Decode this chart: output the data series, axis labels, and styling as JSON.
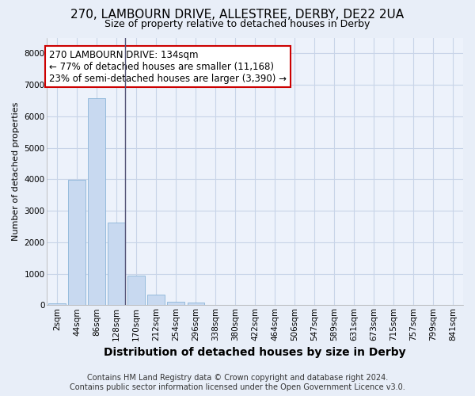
{
  "title_line1": "270, LAMBOURN DRIVE, ALLESTREE, DERBY, DE22 2UA",
  "title_line2": "Size of property relative to detached houses in Derby",
  "xlabel": "Distribution of detached houses by size in Derby",
  "ylabel": "Number of detached properties",
  "categories": [
    "2sqm",
    "44sqm",
    "86sqm",
    "128sqm",
    "170sqm",
    "212sqm",
    "254sqm",
    "296sqm",
    "338sqm",
    "380sqm",
    "422sqm",
    "464sqm",
    "506sqm",
    "547sqm",
    "589sqm",
    "631sqm",
    "673sqm",
    "715sqm",
    "757sqm",
    "799sqm",
    "841sqm"
  ],
  "values": [
    60,
    3980,
    6580,
    2620,
    950,
    330,
    110,
    70,
    0,
    0,
    0,
    0,
    0,
    0,
    0,
    0,
    0,
    0,
    0,
    0,
    0
  ],
  "bar_color": "#c8d9f0",
  "bar_edge_color": "#8ab4d8",
  "annotation_title": "270 LAMBOURN DRIVE: 134sqm",
  "annotation_line2": "← 77% of detached houses are smaller (11,168)",
  "annotation_line3": "23% of semi-detached houses are larger (3,390) →",
  "annotation_box_facecolor": "white",
  "annotation_box_edgecolor": "#cc0000",
  "vline_bar_index": 3,
  "ylim": [
    0,
    8500
  ],
  "yticks": [
    0,
    1000,
    2000,
    3000,
    4000,
    5000,
    6000,
    7000,
    8000
  ],
  "grid_color": "#c8d4e8",
  "bg_color": "#e8eef8",
  "plot_bg_color": "#edf2fb",
  "footer_line1": "Contains HM Land Registry data © Crown copyright and database right 2024.",
  "footer_line2": "Contains public sector information licensed under the Open Government Licence v3.0.",
  "title1_fontsize": 11,
  "title2_fontsize": 9,
  "xlabel_fontsize": 10,
  "ylabel_fontsize": 8,
  "tick_fontsize": 7.5,
  "footer_fontsize": 7,
  "annot_fontsize": 8.5
}
